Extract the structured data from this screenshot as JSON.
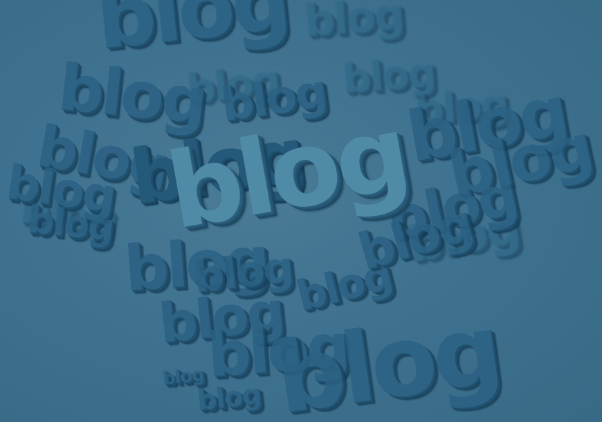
{
  "image": {
    "word": "blog",
    "colors": {
      "background": "#3d6f8b",
      "foreground_dark": "#24597a",
      "foreground_light": "#4f8aa6"
    }
  }
}
